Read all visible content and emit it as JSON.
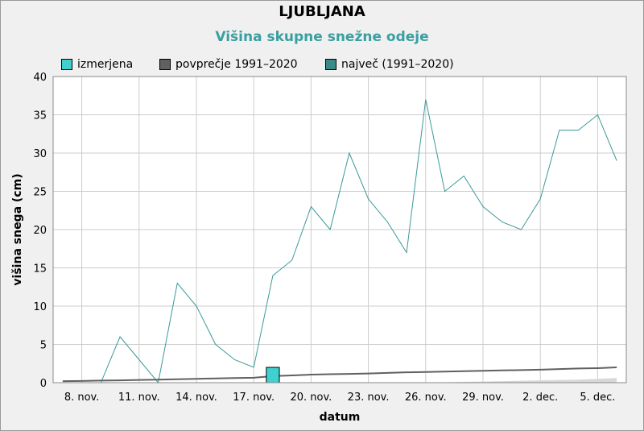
{
  "title": "LJUBLJANA",
  "subtitle": "Višina skupne snežne odeje",
  "legend": [
    {
      "label": "izmerjena",
      "color": "#40d0d0"
    },
    {
      "label": "povprečje 1991–2020",
      "color": "#606060"
    },
    {
      "label": "največ (1991–2020)",
      "color": "#3a8a88"
    }
  ],
  "chart_data": {
    "type": "line",
    "xlabel": "datum",
    "ylabel": "višina snega (cm)",
    "ylim": [
      0,
      40
    ],
    "yticks": [
      0,
      5,
      10,
      15,
      20,
      25,
      30,
      35,
      40
    ],
    "x": [
      "7. nov.",
      "8. nov.",
      "9. nov.",
      "10. nov.",
      "11. nov.",
      "12. nov.",
      "13. nov.",
      "14. nov.",
      "15. nov.",
      "16. nov.",
      "17. nov.",
      "18. nov.",
      "19. nov.",
      "20. nov.",
      "21. nov.",
      "22. nov.",
      "23. nov.",
      "24. nov.",
      "25. nov.",
      "26. nov.",
      "27. nov.",
      "28. nov.",
      "29. nov.",
      "30. nov.",
      "1. dec.",
      "2. dec.",
      "3. dec.",
      "4. dec.",
      "5. dec.",
      "6. dec."
    ],
    "xtick_labels": [
      "8. nov.",
      "11. nov.",
      "14. nov.",
      "17. nov.",
      "20. nov.",
      "23. nov.",
      "26. nov.",
      "29. nov.",
      "2. dec.",
      "5. dec."
    ],
    "grid": true,
    "legend_position": "top-left",
    "series": [
      {
        "name": "največ (1991–2020)",
        "kind": "line",
        "color": "#3a9a98",
        "values": [
          0,
          0,
          0,
          6,
          3,
          0,
          13,
          10,
          5,
          3,
          2,
          14,
          16,
          23,
          20,
          30,
          24,
          21,
          17,
          37,
          25,
          27,
          23,
          21,
          20,
          24,
          33,
          33,
          35,
          29
        ]
      },
      {
        "name": "povprečje 1991–2020",
        "kind": "line",
        "color": "#606060",
        "values": [
          0.2,
          0.23,
          0.27,
          0.3,
          0.35,
          0.4,
          0.45,
          0.5,
          0.55,
          0.6,
          0.65,
          0.85,
          0.95,
          1.05,
          1.1,
          1.15,
          1.2,
          1.28,
          1.35,
          1.4,
          1.45,
          1.5,
          1.55,
          1.6,
          1.65,
          1.7,
          1.78,
          1.85,
          1.9,
          2.0
        ]
      },
      {
        "name": "izmerjena",
        "kind": "bar",
        "color": "#40d0d0",
        "values": [
          null,
          null,
          null,
          null,
          null,
          null,
          null,
          null,
          null,
          null,
          null,
          2,
          null,
          null,
          null,
          null,
          null,
          null,
          null,
          null,
          null,
          null,
          null,
          null,
          null,
          null,
          null,
          null,
          null,
          null
        ]
      }
    ],
    "minimum_band": {
      "color": "#d8d8d8",
      "values": [
        0,
        0,
        0,
        0,
        0,
        0,
        0,
        0,
        0,
        0,
        0,
        0,
        0,
        0,
        0,
        0,
        0,
        0,
        0,
        0,
        0.05,
        0.1,
        0.15,
        0.2,
        0.25,
        0.3,
        0.35,
        0.4,
        0.5,
        0.6
      ]
    }
  }
}
